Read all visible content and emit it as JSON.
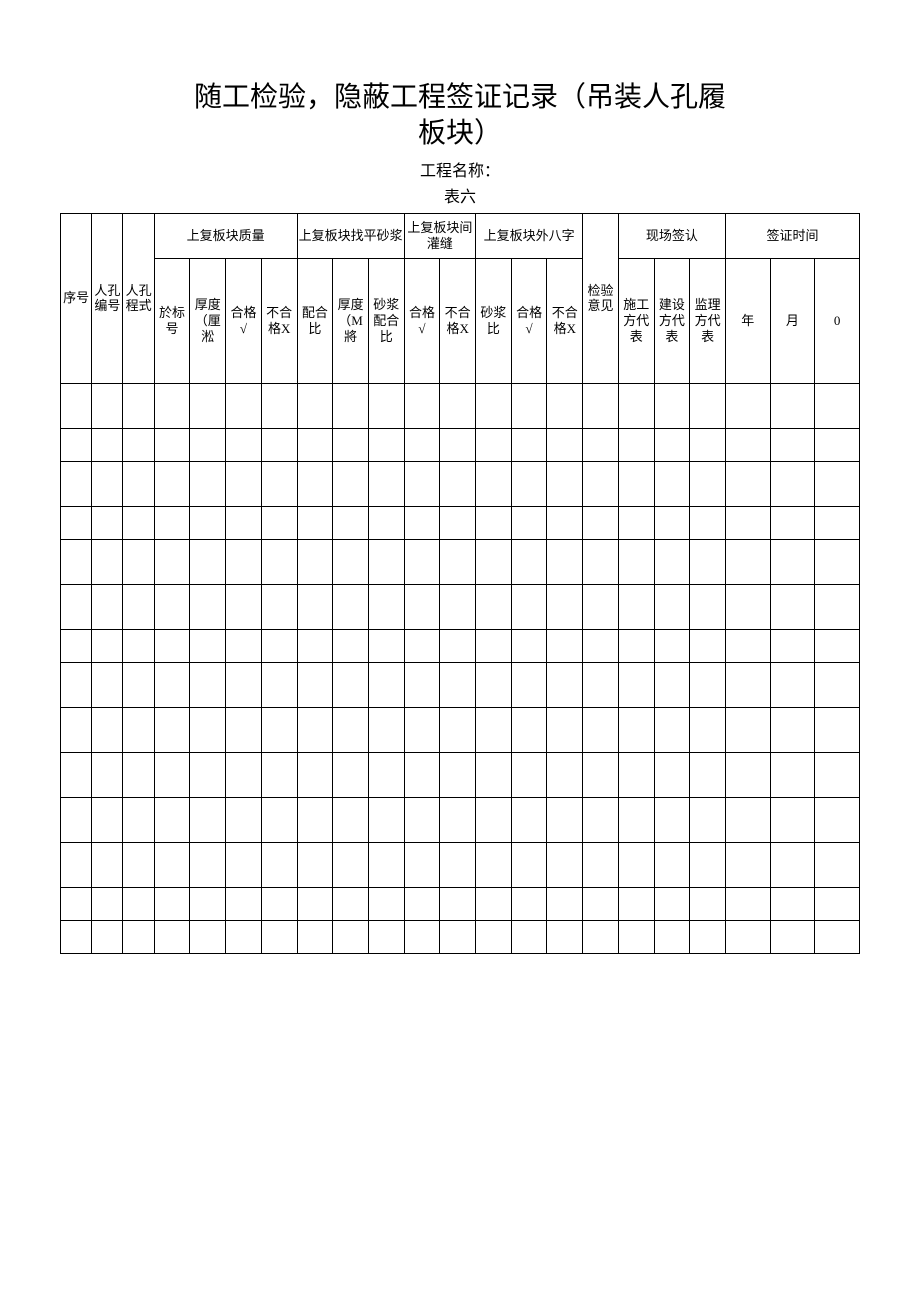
{
  "document": {
    "title_line1": "随工检验，隐蔽工程签证记录（吊装人孔履",
    "title_line2": "板块）",
    "project_name_label": "工程名称：",
    "table_number": "表六"
  },
  "table": {
    "headers_row1": {
      "seq": "序号",
      "hole_no": "人孔编号",
      "hole_type": "人孔程式",
      "quality": "上复板块质量",
      "leveling": "上复板块找平砂浆",
      "joint": "上复板块间灌缝",
      "splay": "上复板块外八字",
      "signoff": "现场签认",
      "date": "签证时间"
    },
    "headers_row2": {
      "brick_no": "於标号",
      "thickness_cm": "厚度（厘淞",
      "pass": "合格√",
      "fail": "不合格X",
      "mix_ratio": "配合比",
      "thickness_m": "厚度（M將",
      "mortar_mix": "砂浆配合比",
      "pass2": "合格√",
      "fail2": "不合格X",
      "mortar_ratio": "砂浆比",
      "pass3": "合格√",
      "fail3": "不合格X",
      "inspect_opinion": "检验意见",
      "construct_rep": "施工方代表",
      "build_rep": "建设方代表",
      "supervise_rep": "监理方代表",
      "year": "年",
      "month": "月",
      "day": "0"
    },
    "num_data_rows": 14,
    "short_rows": [
      2,
      4,
      7,
      13,
      14
    ],
    "num_cols": 22,
    "colors": {
      "text": "#000000",
      "border": "#000000",
      "background": "#ffffff"
    },
    "fonts": {
      "title_size_pt": 21,
      "body_size_pt": 10,
      "subtitle_size_pt": 12
    }
  }
}
